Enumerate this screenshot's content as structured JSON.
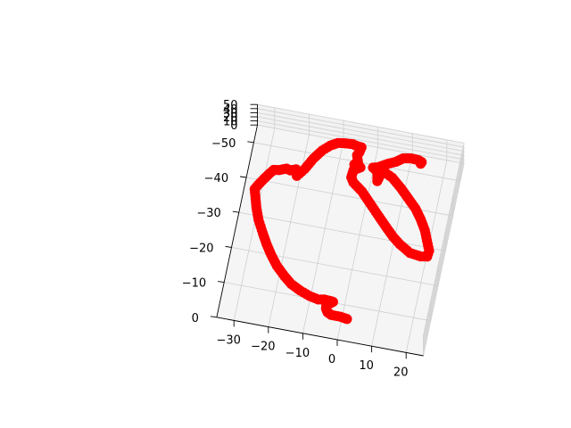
{
  "chart_data": {
    "type": "scatter",
    "projection": "3d",
    "title": "",
    "xlabel": "",
    "ylabel": "",
    "zlabel": "",
    "grid": true,
    "marker_color": "#ff0000",
    "pane_color": "#f2f2f2",
    "x_axis": {
      "range": [
        -35,
        25
      ],
      "ticks": [
        -30,
        -20,
        -10,
        0,
        10,
        20
      ],
      "tick_labels": [
        "−30",
        "−20",
        "−10",
        "0",
        "10",
        "20"
      ]
    },
    "y_axis": {
      "range": [
        0,
        -55
      ],
      "ticks": [
        0,
        -10,
        -20,
        -30,
        -40,
        -50
      ],
      "tick_labels": [
        "0",
        "−10",
        "−20",
        "−30",
        "−40",
        "−50"
      ]
    },
    "z_axis": {
      "range": [
        0,
        50
      ],
      "ticks": [
        0,
        10,
        20,
        30,
        40,
        50
      ],
      "tick_labels": [
        "0",
        "10",
        "20",
        "30",
        "40",
        "50"
      ]
    },
    "trajectory": [
      [
        1.5,
        -6.2
      ],
      [
        -0.6,
        -6.5
      ],
      [
        -3.1,
        -6.5
      ],
      [
        -4.3,
        -7.0
      ],
      [
        -5.0,
        -8.0
      ],
      [
        -5.1,
        -9.1
      ],
      [
        -4.0,
        -9.7
      ],
      [
        -3.4,
        -10.2
      ],
      [
        -3.9,
        -10.3
      ],
      [
        -6.0,
        -10.4
      ],
      [
        -7.7,
        -10.1
      ],
      [
        -10.3,
        -10.6
      ],
      [
        -13.2,
        -11.6
      ],
      [
        -16.2,
        -13.0
      ],
      [
        -18.4,
        -14.7
      ],
      [
        -21.2,
        -17.2
      ],
      [
        -23.5,
        -20.0
      ],
      [
        -25.4,
        -22.7
      ],
      [
        -27.1,
        -25.5
      ],
      [
        -29.1,
        -29.0
      ],
      [
        -30.4,
        -32.2
      ],
      [
        -31.4,
        -35.4
      ],
      [
        -32.0,
        -37.2
      ],
      [
        -31.3,
        -38.5
      ],
      [
        -30.0,
        -40.5
      ],
      [
        -28.8,
        -42.2
      ],
      [
        -27.8,
        -43.5
      ],
      [
        -26.3,
        -43.7
      ],
      [
        -24.3,
        -44.5
      ],
      [
        -23.1,
        -44.2
      ],
      [
        -21.6,
        -44.8
      ],
      [
        -21.0,
        -43.0
      ],
      [
        -19.2,
        -45.3
      ],
      [
        -17.4,
        -48.6
      ],
      [
        -15.4,
        -51.3
      ],
      [
        -13.4,
        -53.1
      ],
      [
        -11.4,
        -54.2
      ],
      [
        -10.0,
        -54.4
      ],
      [
        -8.9,
        -54.5
      ],
      [
        -7.2,
        -54.6
      ],
      [
        -5.9,
        -54.3
      ],
      [
        -4.6,
        -54.2
      ],
      [
        -4.9,
        -52.7
      ],
      [
        -5.4,
        -51.8
      ],
      [
        -4.7,
        -49.9
      ],
      [
        -5.6,
        -49.1
      ],
      [
        -3.7,
        -48.6
      ],
      [
        -5.5,
        -47.5
      ],
      [
        -5.7,
        -45.4
      ],
      [
        -4.8,
        -44.1
      ],
      [
        -1.9,
        -42.1
      ],
      [
        1.2,
        -39.1
      ],
      [
        4.5,
        -35.9
      ],
      [
        6.9,
        -33.6
      ],
      [
        9.5,
        -31.2
      ],
      [
        11.8,
        -29.5
      ],
      [
        15.2,
        -27.6
      ],
      [
        18.4,
        -27.2
      ],
      [
        20.2,
        -27.5
      ],
      [
        20.4,
        -29.2
      ],
      [
        19.2,
        -31.9
      ],
      [
        18.0,
        -34.6
      ],
      [
        16.2,
        -37.4
      ],
      [
        14.1,
        -40.1
      ],
      [
        11.4,
        -42.6
      ],
      [
        8.8,
        -45.0
      ],
      [
        5.8,
        -47.4
      ],
      [
        4.0,
        -48.2
      ],
      [
        3.2,
        -48.8
      ],
      [
        2.5,
        -48.5
      ],
      [
        2.0,
        -46.4
      ],
      [
        1.8,
        -45.7
      ],
      [
        1.3,
        -48.3
      ],
      [
        -0.2,
        -49.2
      ],
      [
        1.2,
        -49.6
      ],
      [
        3.7,
        -51.0
      ],
      [
        5.9,
        -52.0
      ],
      [
        7.7,
        -53.3
      ],
      [
        9.9,
        -53.7
      ],
      [
        12.0,
        -53.6
      ],
      [
        13.1,
        -53.2
      ],
      [
        12.9,
        -52.7
      ]
    ]
  }
}
